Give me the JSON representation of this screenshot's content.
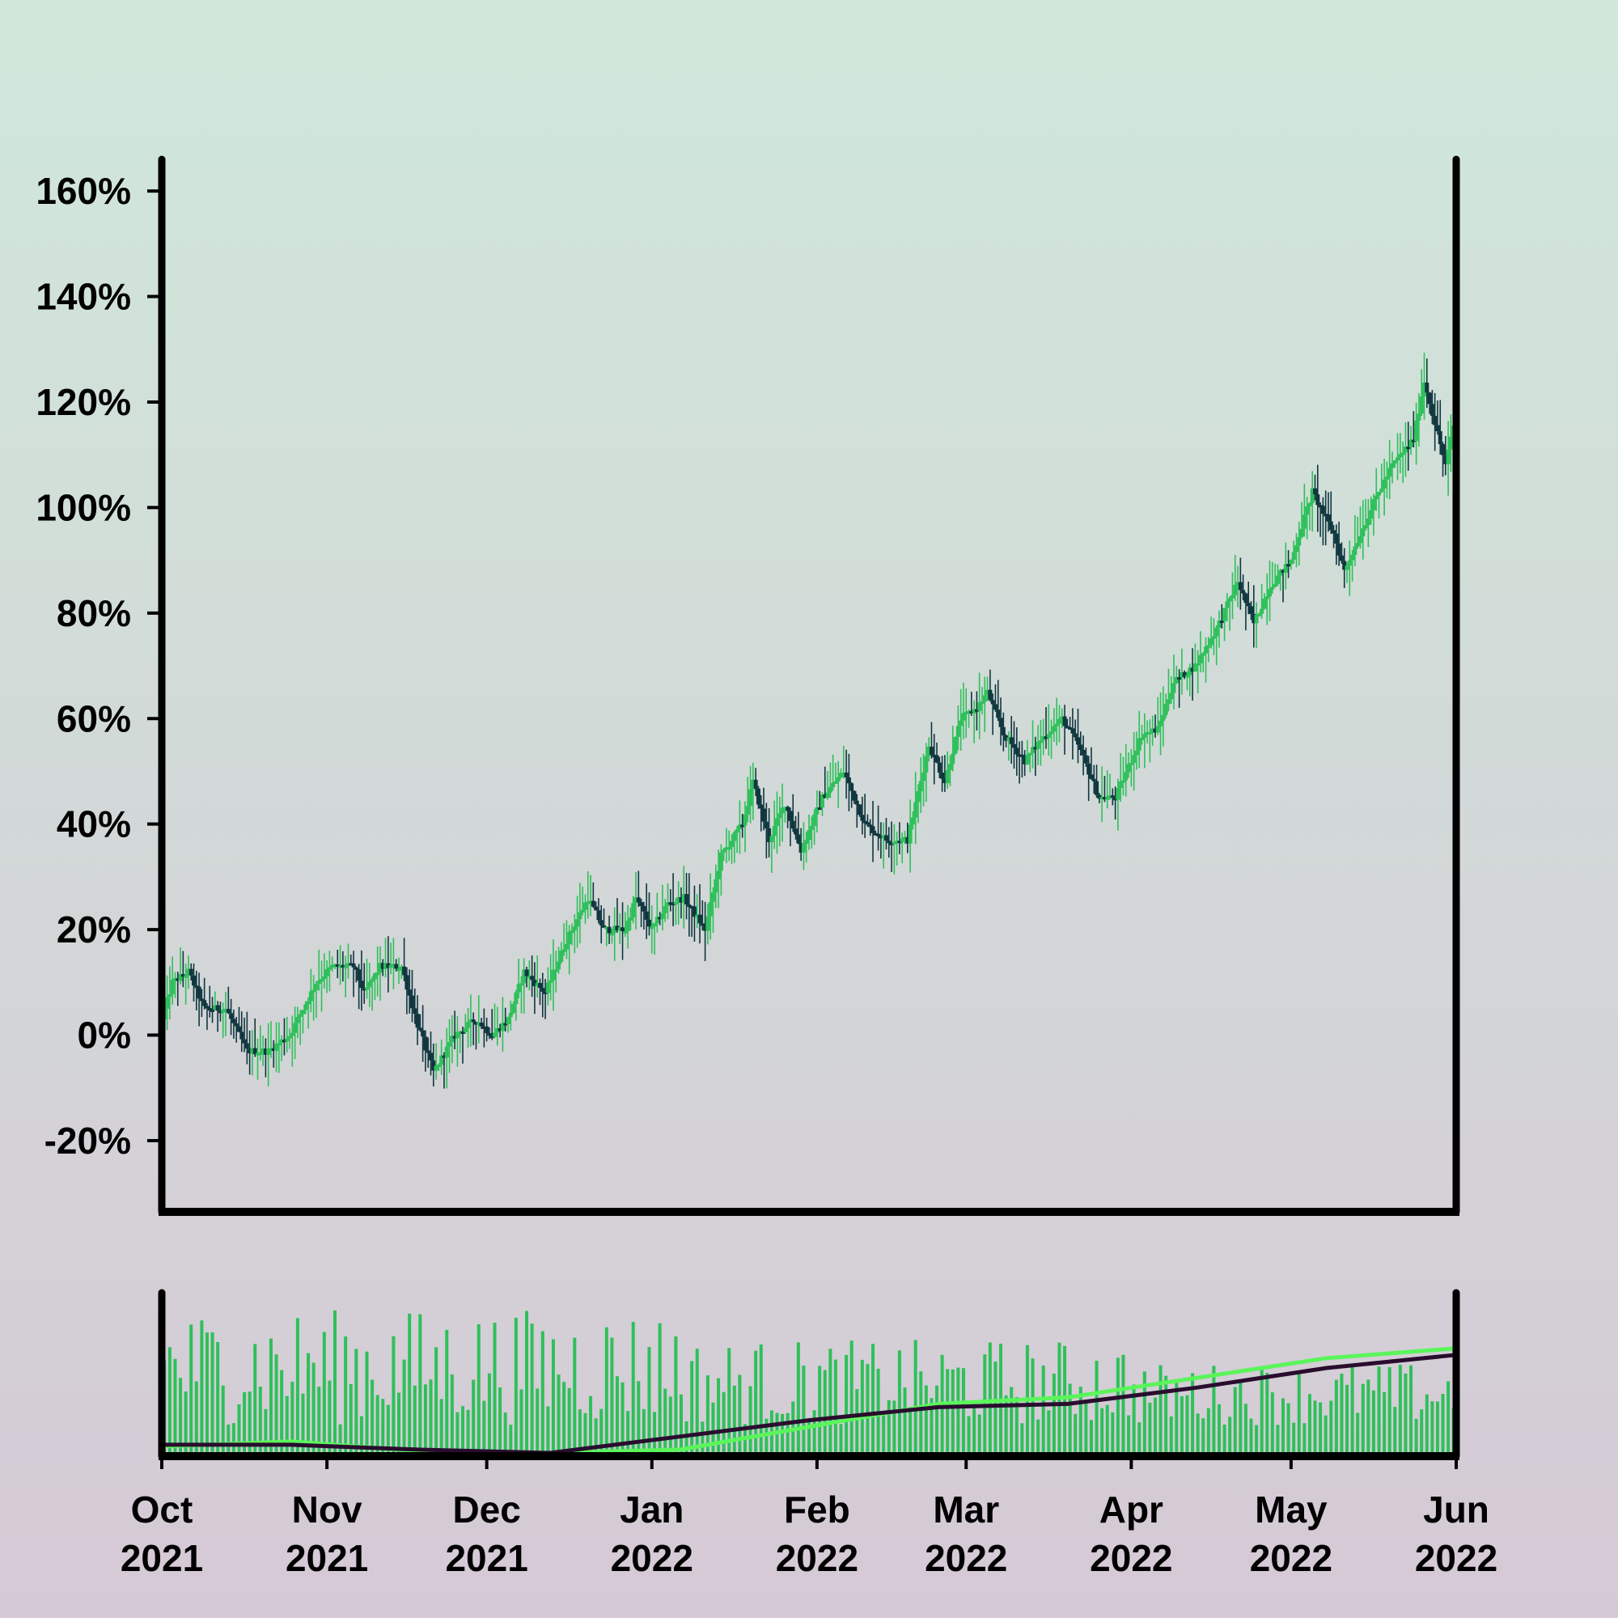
{
  "chart_data": {
    "type": "candlestick",
    "title": "",
    "xlabel": "",
    "ylabel": "",
    "y_unit": "%",
    "x_range": [
      "2021-10-01",
      "2022-06-01"
    ],
    "ylim": [
      -33.5,
      166
    ],
    "y_ticks": [
      -20,
      0,
      20,
      40,
      60,
      80,
      100,
      120,
      140,
      160
    ],
    "y_tick_labels": [
      "-20%",
      "0%",
      "20%",
      "40%",
      "60%",
      "80%",
      "100%",
      "120%",
      "140%",
      "160%"
    ],
    "x_ticks": [
      {
        "date": "2021-10-01",
        "month": "Oct",
        "year": "2021"
      },
      {
        "date": "2021-11-01",
        "month": "Nov",
        "year": "2021"
      },
      {
        "date": "2021-12-01",
        "month": "Dec",
        "year": "2021"
      },
      {
        "date": "2022-01-01",
        "month": "Jan",
        "year": "2022"
      },
      {
        "date": "2022-02-01",
        "month": "Feb",
        "year": "2022"
      },
      {
        "date": "2022-03-01",
        "month": "Mar",
        "year": "2022"
      },
      {
        "date": "2022-04-01",
        "month": "Apr",
        "year": "2022"
      },
      {
        "date": "2022-05-01",
        "month": "May",
        "year": "2022"
      },
      {
        "date": "2022-06-01",
        "month": "Jun",
        "year": "2022"
      }
    ],
    "close_path": [
      [
        "2021-10-01",
        3
      ],
      [
        "2021-10-03",
        10
      ],
      [
        "2021-10-06",
        12
      ],
      [
        "2021-10-09",
        5
      ],
      [
        "2021-10-13",
        5
      ],
      [
        "2021-10-17",
        -3
      ],
      [
        "2021-10-21",
        -3
      ],
      [
        "2021-10-25",
        0
      ],
      [
        "2021-10-30",
        10
      ],
      [
        "2021-11-02",
        13
      ],
      [
        "2021-11-06",
        13
      ],
      [
        "2021-11-08",
        8
      ],
      [
        "2021-11-11",
        13
      ],
      [
        "2021-11-15",
        13
      ],
      [
        "2021-11-18",
        2
      ],
      [
        "2021-11-21",
        -7
      ],
      [
        "2021-11-25",
        0
      ],
      [
        "2021-11-29",
        3
      ],
      [
        "2021-12-02",
        0
      ],
      [
        "2021-12-05",
        3
      ],
      [
        "2021-12-08",
        12
      ],
      [
        "2021-12-12",
        8
      ],
      [
        "2021-12-16",
        18
      ],
      [
        "2021-12-20",
        26
      ],
      [
        "2021-12-23",
        20
      ],
      [
        "2021-12-27",
        20
      ],
      [
        "2021-12-29",
        26
      ],
      [
        "2022-01-01",
        20
      ],
      [
        "2022-01-04",
        25
      ],
      [
        "2022-01-07",
        26
      ],
      [
        "2022-01-11",
        20
      ],
      [
        "2022-01-14",
        34
      ],
      [
        "2022-01-18",
        40
      ],
      [
        "2022-01-20",
        48
      ],
      [
        "2022-01-23",
        37
      ],
      [
        "2022-01-26",
        44
      ],
      [
        "2022-01-29",
        35
      ],
      [
        "2022-02-02",
        45
      ],
      [
        "2022-02-06",
        50
      ],
      [
        "2022-02-10",
        40
      ],
      [
        "2022-02-14",
        37
      ],
      [
        "2022-02-18",
        37
      ],
      [
        "2022-02-22",
        55
      ],
      [
        "2022-02-25",
        48
      ],
      [
        "2022-02-28",
        60
      ],
      [
        "2022-03-03",
        62
      ],
      [
        "2022-03-05",
        65
      ],
      [
        "2022-03-08",
        57
      ],
      [
        "2022-03-12",
        52
      ],
      [
        "2022-03-15",
        56
      ],
      [
        "2022-03-19",
        60
      ],
      [
        "2022-03-22",
        55
      ],
      [
        "2022-03-26",
        45
      ],
      [
        "2022-03-29",
        45
      ],
      [
        "2022-04-03",
        57
      ],
      [
        "2022-04-06",
        58
      ],
      [
        "2022-04-09",
        67
      ],
      [
        "2022-04-13",
        70
      ],
      [
        "2022-04-17",
        77
      ],
      [
        "2022-04-21",
        86
      ],
      [
        "2022-04-24",
        78
      ],
      [
        "2022-04-27",
        85
      ],
      [
        "2022-05-01",
        90
      ],
      [
        "2022-05-05",
        103
      ],
      [
        "2022-05-09",
        95
      ],
      [
        "2022-05-11",
        88
      ],
      [
        "2022-05-14",
        95
      ],
      [
        "2022-05-17",
        102
      ],
      [
        "2022-05-20",
        108
      ],
      [
        "2022-05-24",
        113
      ],
      [
        "2022-05-26",
        124
      ],
      [
        "2022-05-28",
        116
      ],
      [
        "2022-05-30",
        108
      ],
      [
        "2022-06-01",
        118
      ]
    ],
    "volume_panel": {
      "series": [
        {
          "name": "",
          "color": "#5bf55b",
          "values": [
            [
              0,
              4
            ],
            [
              0.1,
              7
            ],
            [
              0.2,
              1
            ],
            [
              0.3,
              0
            ],
            [
              0.4,
              2
            ],
            [
              0.5,
              16
            ],
            [
              0.6,
              30
            ],
            [
              0.7,
              34
            ],
            [
              0.8,
              46
            ],
            [
              0.9,
              58
            ],
            [
              1.0,
              64
            ]
          ]
        },
        {
          "name": "",
          "color": "#2a0d2e",
          "values": [
            [
              0,
              5
            ],
            [
              0.1,
              5
            ],
            [
              0.2,
              2
            ],
            [
              0.3,
              0
            ],
            [
              0.4,
              10
            ],
            [
              0.5,
              20
            ],
            [
              0.6,
              28
            ],
            [
              0.7,
              30
            ],
            [
              0.8,
              40
            ],
            [
              0.9,
              52
            ],
            [
              1.0,
              60
            ]
          ]
        }
      ]
    },
    "colors": {
      "up": "#2ec05a",
      "down": "#10363f",
      "axis": "#000000",
      "background_top": "#d0e8da",
      "background_bottom": "#d5c9d5"
    }
  }
}
